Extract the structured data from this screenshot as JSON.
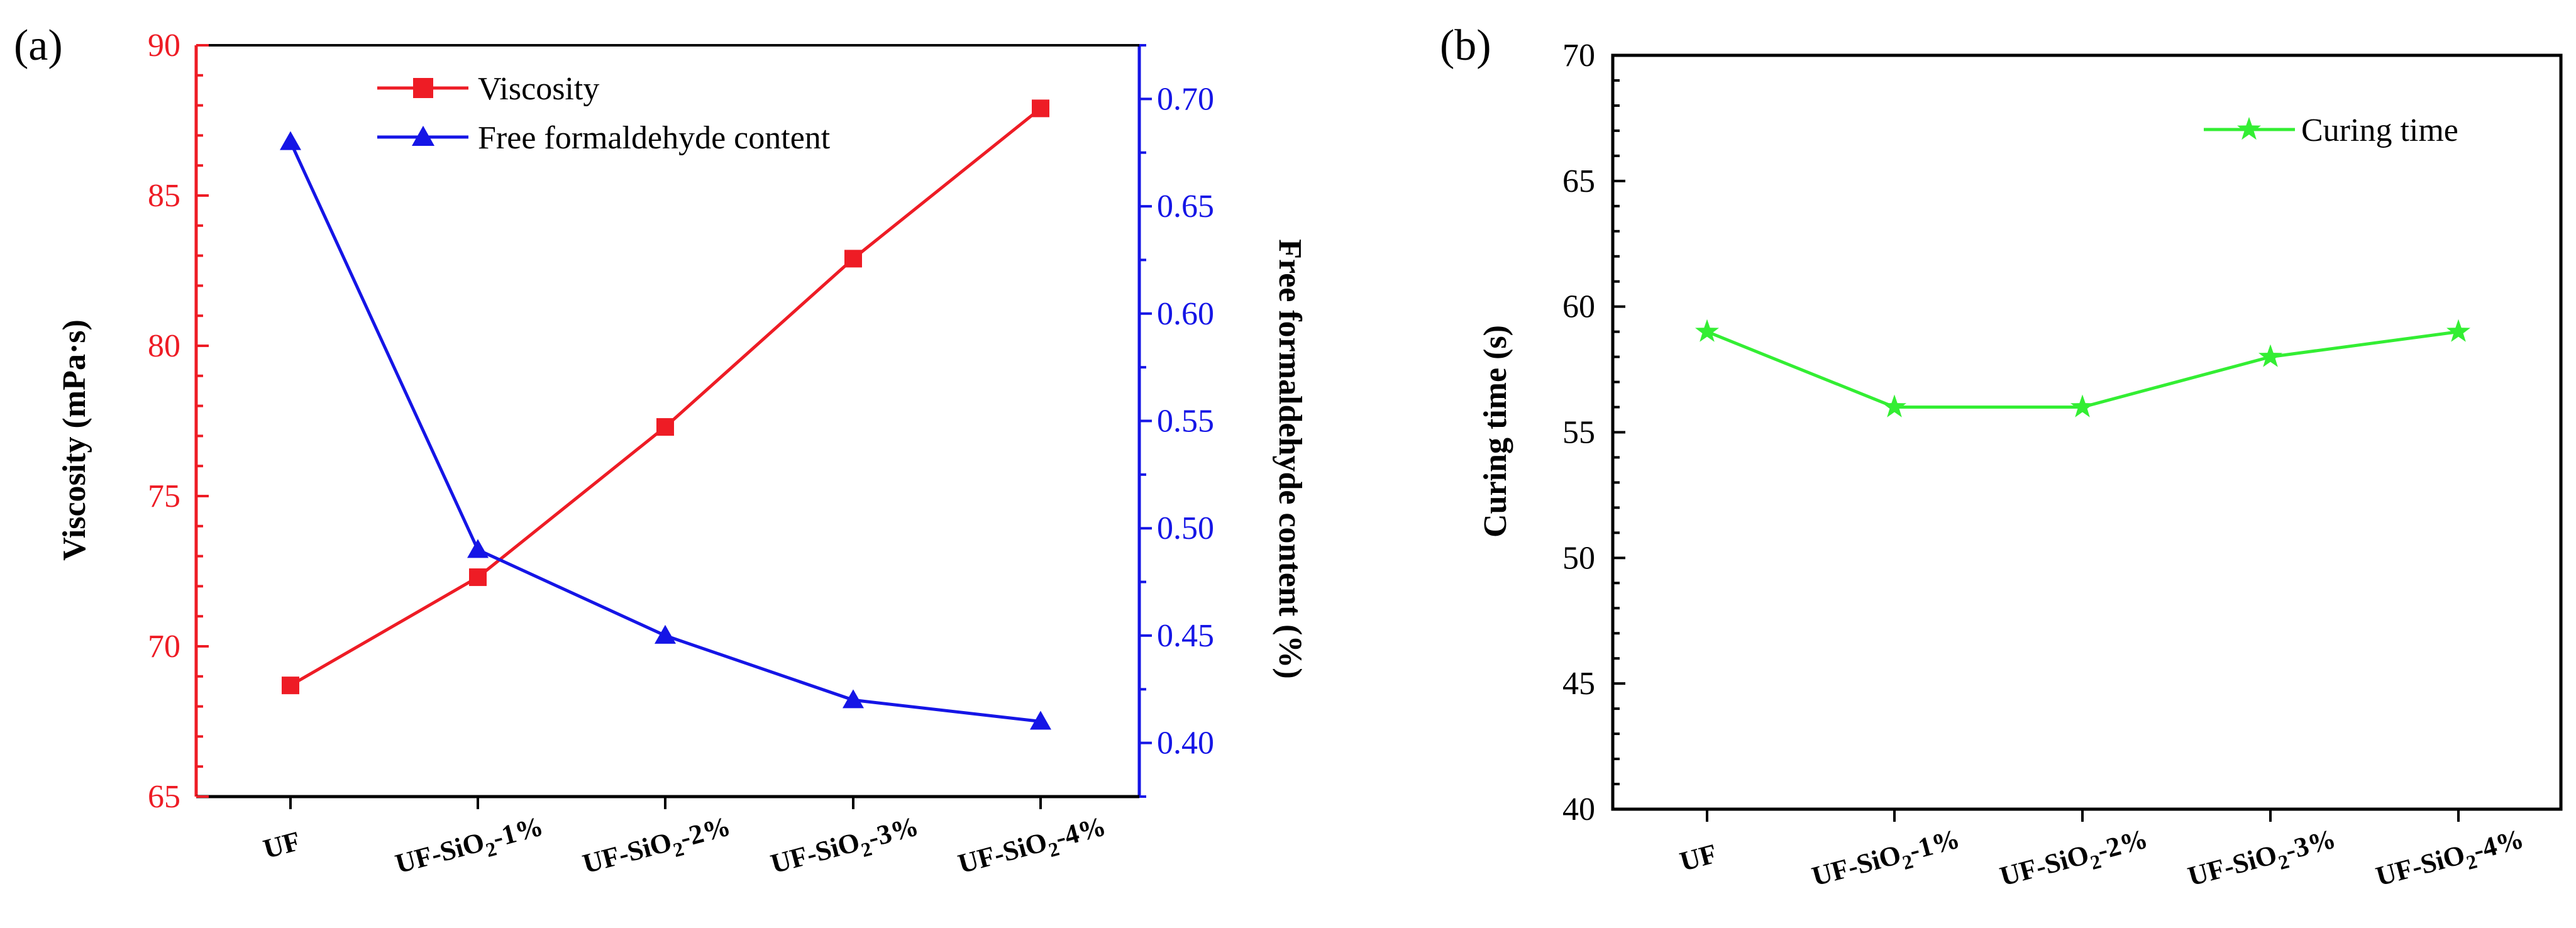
{
  "colors": {
    "viscosity": "#ee1c25",
    "formaldehyde": "#1515e6",
    "curing": "#33ee33",
    "axis": "#000000"
  },
  "chart_data": [
    {
      "panel_label": "(a)",
      "type": "line",
      "categories": [
        {
          "base": "UF",
          "sub": "",
          "suffix": ""
        },
        {
          "base": "UF-SiO",
          "sub": "2",
          "suffix": "-1%"
        },
        {
          "base": "UF-SiO",
          "sub": "2",
          "suffix": "-2%"
        },
        {
          "base": "UF-SiO",
          "sub": "2",
          "suffix": "-3%"
        },
        {
          "base": "UF-SiO",
          "sub": "2",
          "suffix": "-4%"
        }
      ],
      "ylabel_left": "Viscosity (mPa·s)",
      "ylabel_right": "Free formaldehyde content (%)",
      "ylim_left": [
        65,
        90
      ],
      "yticks_left": [
        "65",
        "70",
        "75",
        "80",
        "85",
        "90"
      ],
      "ylim_right": [
        0.375,
        0.725
      ],
      "yticks_right": [
        "0.40",
        "0.45",
        "0.50",
        "0.55",
        "0.60",
        "0.65",
        "0.70"
      ],
      "legend_position": "top-center",
      "series": [
        {
          "name": "Viscosity",
          "axis": "left",
          "marker": "square",
          "color_key": "viscosity",
          "values": [
            68.7,
            72.3,
            77.3,
            82.9,
            87.9
          ]
        },
        {
          "name": "Free formaldehyde content",
          "axis": "right",
          "marker": "triangle",
          "color_key": "formaldehyde",
          "values": [
            0.68,
            0.49,
            0.45,
            0.42,
            0.41
          ]
        }
      ]
    },
    {
      "panel_label": "(b)",
      "type": "line",
      "categories": [
        {
          "base": "UF",
          "sub": "",
          "suffix": ""
        },
        {
          "base": "UF-SiO",
          "sub": "2",
          "suffix": "-1%"
        },
        {
          "base": "UF-SiO",
          "sub": "2",
          "suffix": "-2%"
        },
        {
          "base": "UF-SiO",
          "sub": "2",
          "suffix": "-3%"
        },
        {
          "base": "UF-SiO",
          "sub": "2",
          "suffix": "-4%"
        }
      ],
      "ylabel": "Curing time (s)",
      "ylim": [
        40,
        70
      ],
      "yticks": [
        "40",
        "45",
        "50",
        "55",
        "60",
        "65",
        "70"
      ],
      "legend_position": "top-right",
      "series": [
        {
          "name": "Curing time",
          "marker": "star",
          "color_key": "curing",
          "values": [
            59,
            56,
            56,
            58,
            59
          ]
        }
      ]
    }
  ]
}
